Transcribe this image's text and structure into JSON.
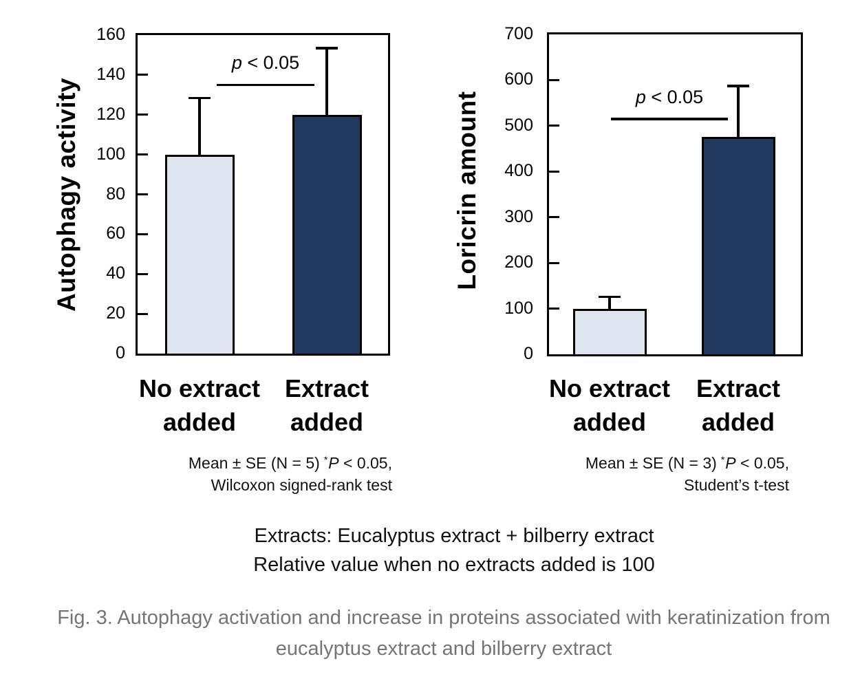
{
  "chart_data": [
    {
      "type": "bar",
      "ylabel": "Autophagy activity",
      "categories": [
        "No extract added",
        "Extract added"
      ],
      "values": [
        100,
        120
      ],
      "errors_plus": [
        29,
        34
      ],
      "ylim": [
        0,
        160
      ],
      "ytick_step": 20,
      "grid": false,
      "legend": "none",
      "bar_colors": [
        "#dfe5ef",
        "#21395c"
      ],
      "significance": {
        "label": "p < 0.05",
        "p_italic": "p",
        "rest": " < 0.05",
        "line_value": 135
      },
      "footnote": {
        "prefix": "Mean ± SE (N = 5)",
        "star": "*",
        "p": "P",
        "rest": " < 0.05,",
        "line2": "Wilcoxon signed-rank test"
      }
    },
    {
      "type": "bar",
      "ylabel": "Loricrin amount",
      "categories": [
        "No extract added",
        "Extract added"
      ],
      "values": [
        100,
        475
      ],
      "errors_plus": [
        28,
        115
      ],
      "ylim": [
        0,
        700
      ],
      "ytick_step": 100,
      "grid": false,
      "legend": "none",
      "bar_colors": [
        "#dfe5ef",
        "#21395c"
      ],
      "significance": {
        "label": "p < 0.05",
        "p_italic": "p",
        "rest": " < 0.05",
        "line_value": 515
      },
      "footnote": {
        "prefix": "Mean ± SE (N = 3)",
        "star": "*",
        "p": "P",
        "rest": " < 0.05,",
        "line2": "Student’s t-test"
      }
    }
  ],
  "annotation": {
    "line1": "Extracts: Eucalyptus extract + bilberry extract",
    "line2": "Relative value when no extracts added is 100"
  },
  "caption": {
    "line1": "Fig. 3. Autophagy activation and increase in proteins associated with keratinization from",
    "line2": "eucalyptus extract and bilberry extract"
  }
}
